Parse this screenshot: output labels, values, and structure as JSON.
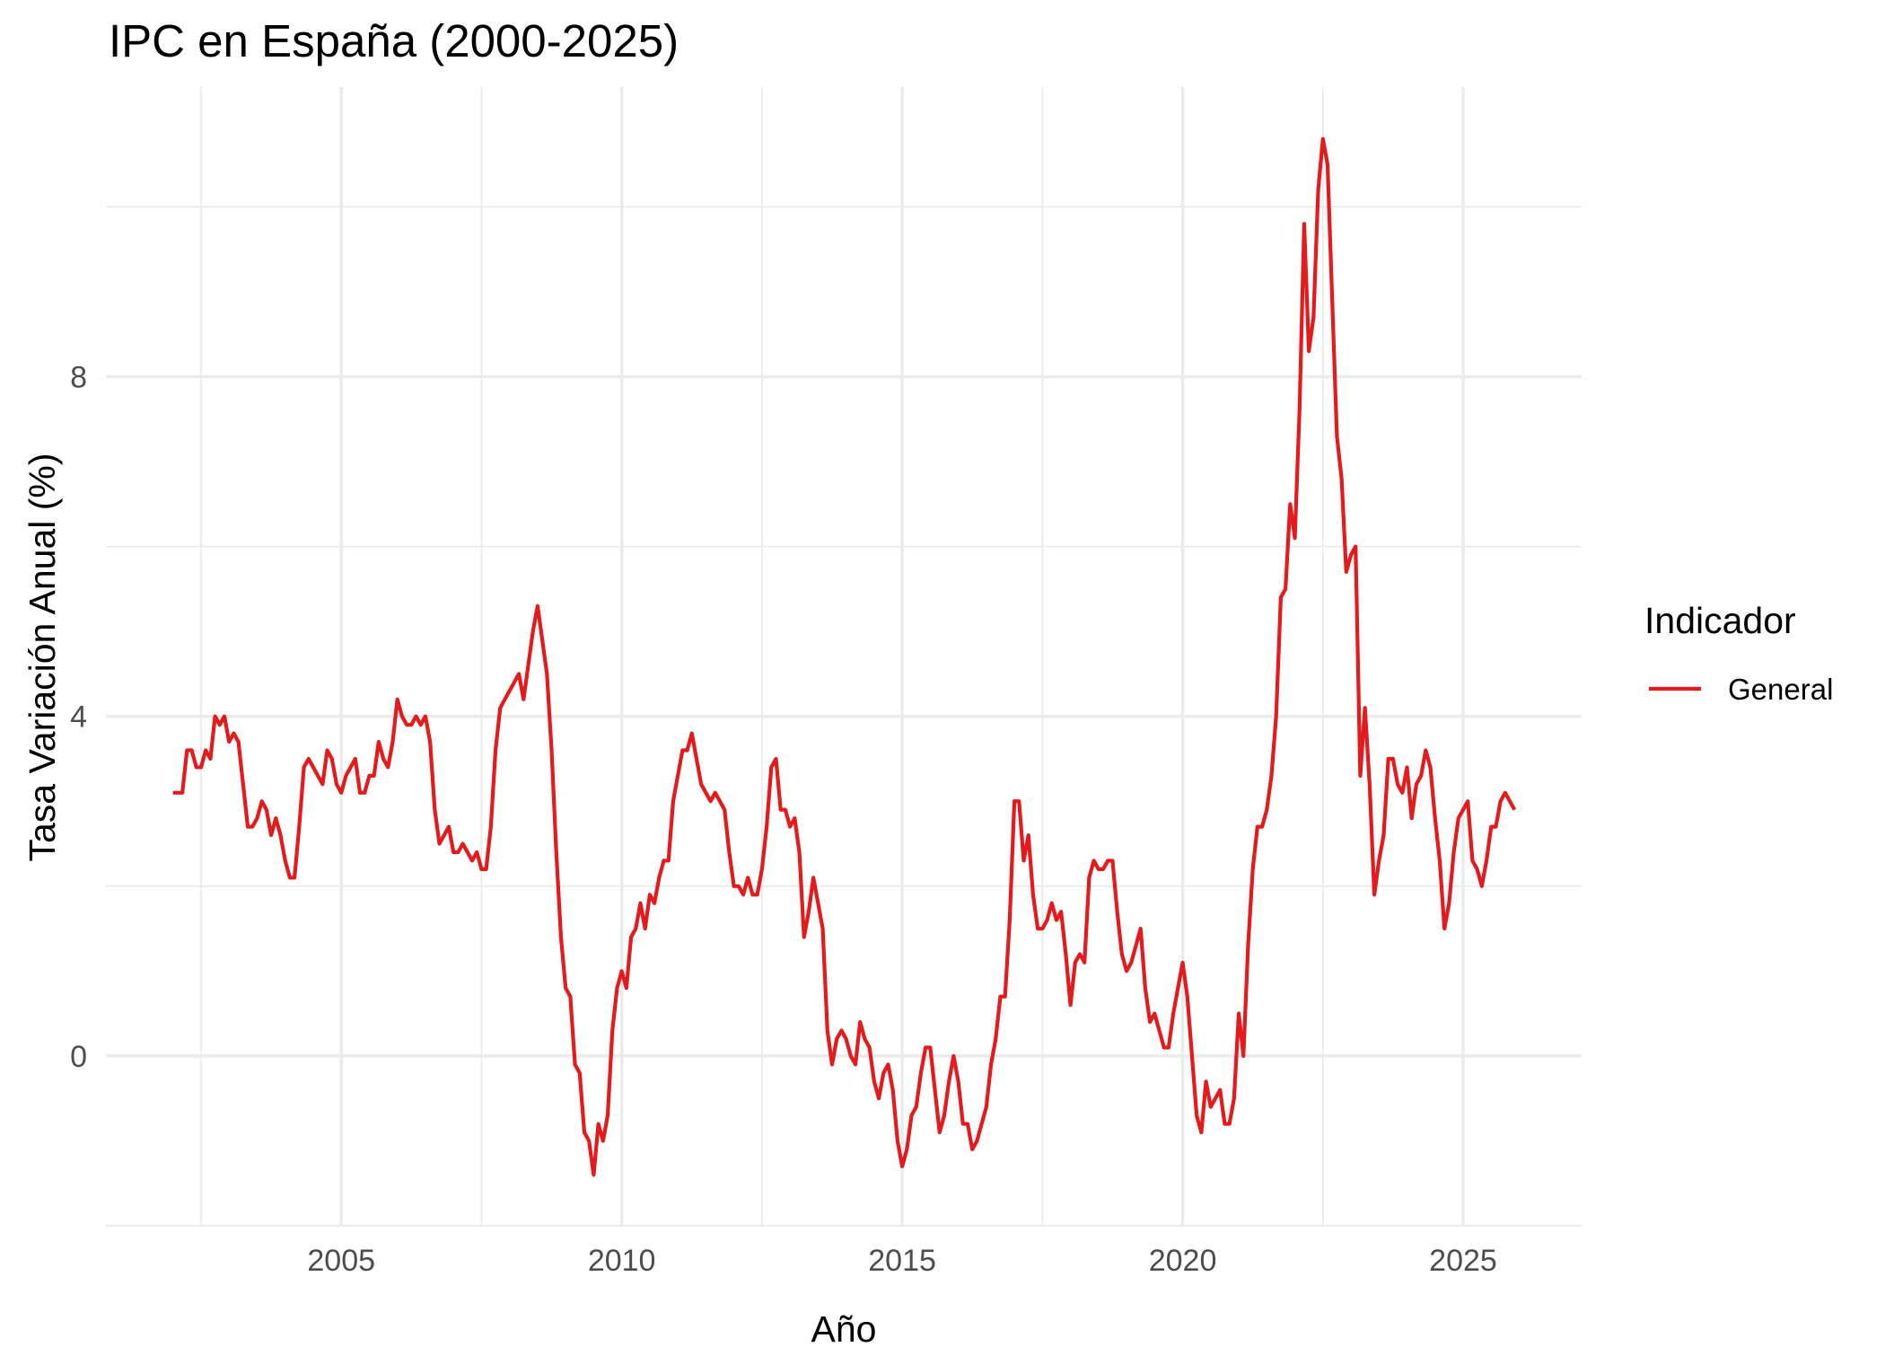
{
  "chart_data": {
    "type": "line",
    "title": "IPC en España (2000-2025)",
    "xlabel": "Año",
    "ylabel": "Tasa Variación Anual (%)",
    "legend": {
      "title": "Indicador",
      "position": "right",
      "entries": [
        {
          "name": "General",
          "color": "#E41A1C"
        }
      ]
    },
    "grid": true,
    "x_ticks": [
      2005,
      2010,
      2015,
      2020,
      2025
    ],
    "x_tick_labels": [
      "2005",
      "2010",
      "2015",
      "2020",
      "2025"
    ],
    "x_minor_ticks": [
      2002.5,
      2007.5,
      2012.5,
      2017.5,
      2022.5
    ],
    "y_ticks": [
      0,
      4,
      8
    ],
    "y_tick_labels": [
      "0",
      "4",
      "8"
    ],
    "y_minor_ticks": [
      -2,
      2,
      6,
      10
    ],
    "frequency": "monthly",
    "x_start": 2002.0,
    "x_step": 0.0833333333,
    "series": [
      {
        "name": "General",
        "color": "#E41A1C",
        "values": [
          3.1,
          3.1,
          3.1,
          3.6,
          3.6,
          3.4,
          3.4,
          3.6,
          3.5,
          4.0,
          3.9,
          4.0,
          3.7,
          3.8,
          3.7,
          3.2,
          2.7,
          2.7,
          2.8,
          3.0,
          2.9,
          2.6,
          2.8,
          2.6,
          2.3,
          2.1,
          2.1,
          2.7,
          3.4,
          3.5,
          3.4,
          3.3,
          3.2,
          3.6,
          3.5,
          3.2,
          3.1,
          3.3,
          3.4,
          3.5,
          3.1,
          3.1,
          3.3,
          3.3,
          3.7,
          3.5,
          3.4,
          3.7,
          4.2,
          4.0,
          3.9,
          3.9,
          4.0,
          3.9,
          4.0,
          3.7,
          2.9,
          2.5,
          2.6,
          2.7,
          2.4,
          2.4,
          2.5,
          2.4,
          2.3,
          2.4,
          2.2,
          2.2,
          2.7,
          3.6,
          4.1,
          4.2,
          4.3,
          4.4,
          4.5,
          4.2,
          4.6,
          5.0,
          5.3,
          4.9,
          4.5,
          3.6,
          2.4,
          1.4,
          0.8,
          0.7,
          -0.1,
          -0.2,
          -0.9,
          -1.0,
          -1.4,
          -0.8,
          -1.0,
          -0.7,
          0.3,
          0.8,
          1.0,
          0.8,
          1.4,
          1.5,
          1.8,
          1.5,
          1.9,
          1.8,
          2.1,
          2.3,
          2.3,
          3.0,
          3.3,
          3.6,
          3.6,
          3.8,
          3.5,
          3.2,
          3.1,
          3.0,
          3.1,
          3.0,
          2.9,
          2.4,
          2.0,
          2.0,
          1.9,
          2.1,
          1.9,
          1.9,
          2.2,
          2.7,
          3.4,
          3.5,
          2.9,
          2.9,
          2.7,
          2.8,
          2.4,
          1.4,
          1.7,
          2.1,
          1.8,
          1.5,
          0.3,
          -0.1,
          0.2,
          0.3,
          0.2,
          0.0,
          -0.1,
          0.4,
          0.2,
          0.1,
          -0.3,
          -0.5,
          -0.2,
          -0.1,
          -0.4,
          -1.0,
          -1.3,
          -1.1,
          -0.7,
          -0.6,
          -0.2,
          0.1,
          0.1,
          -0.4,
          -0.9,
          -0.7,
          -0.3,
          0.0,
          -0.3,
          -0.8,
          -0.8,
          -1.1,
          -1.0,
          -0.8,
          -0.6,
          -0.1,
          0.2,
          0.7,
          0.7,
          1.6,
          3.0,
          3.0,
          2.3,
          2.6,
          1.9,
          1.5,
          1.5,
          1.6,
          1.8,
          1.6,
          1.7,
          1.2,
          0.6,
          1.1,
          1.2,
          1.1,
          2.1,
          2.3,
          2.2,
          2.2,
          2.3,
          2.3,
          1.7,
          1.2,
          1.0,
          1.1,
          1.3,
          1.5,
          0.8,
          0.4,
          0.5,
          0.3,
          0.1,
          0.1,
          0.5,
          0.8,
          1.1,
          0.7,
          0.0,
          -0.7,
          -0.9,
          -0.3,
          -0.6,
          -0.5,
          -0.4,
          -0.8,
          -0.8,
          -0.5,
          0.5,
          0.0,
          1.3,
          2.2,
          2.7,
          2.7,
          2.9,
          3.3,
          4.0,
          5.4,
          5.5,
          6.5,
          6.1,
          7.6,
          9.8,
          8.3,
          8.7,
          10.2,
          10.8,
          10.5,
          8.9,
          7.3,
          6.8,
          5.7,
          5.9,
          6.0,
          3.3,
          4.1,
          3.2,
          1.9,
          2.3,
          2.6,
          3.5,
          3.5,
          3.2,
          3.1,
          3.4,
          2.8,
          3.2,
          3.3,
          3.6,
          3.4,
          2.8,
          2.3,
          1.5,
          1.8,
          2.4,
          2.8,
          2.9,
          3.0,
          2.3,
          2.2,
          2.0,
          2.3,
          2.7,
          2.7,
          3.0,
          3.1,
          3.0,
          2.9
        ]
      }
    ]
  }
}
